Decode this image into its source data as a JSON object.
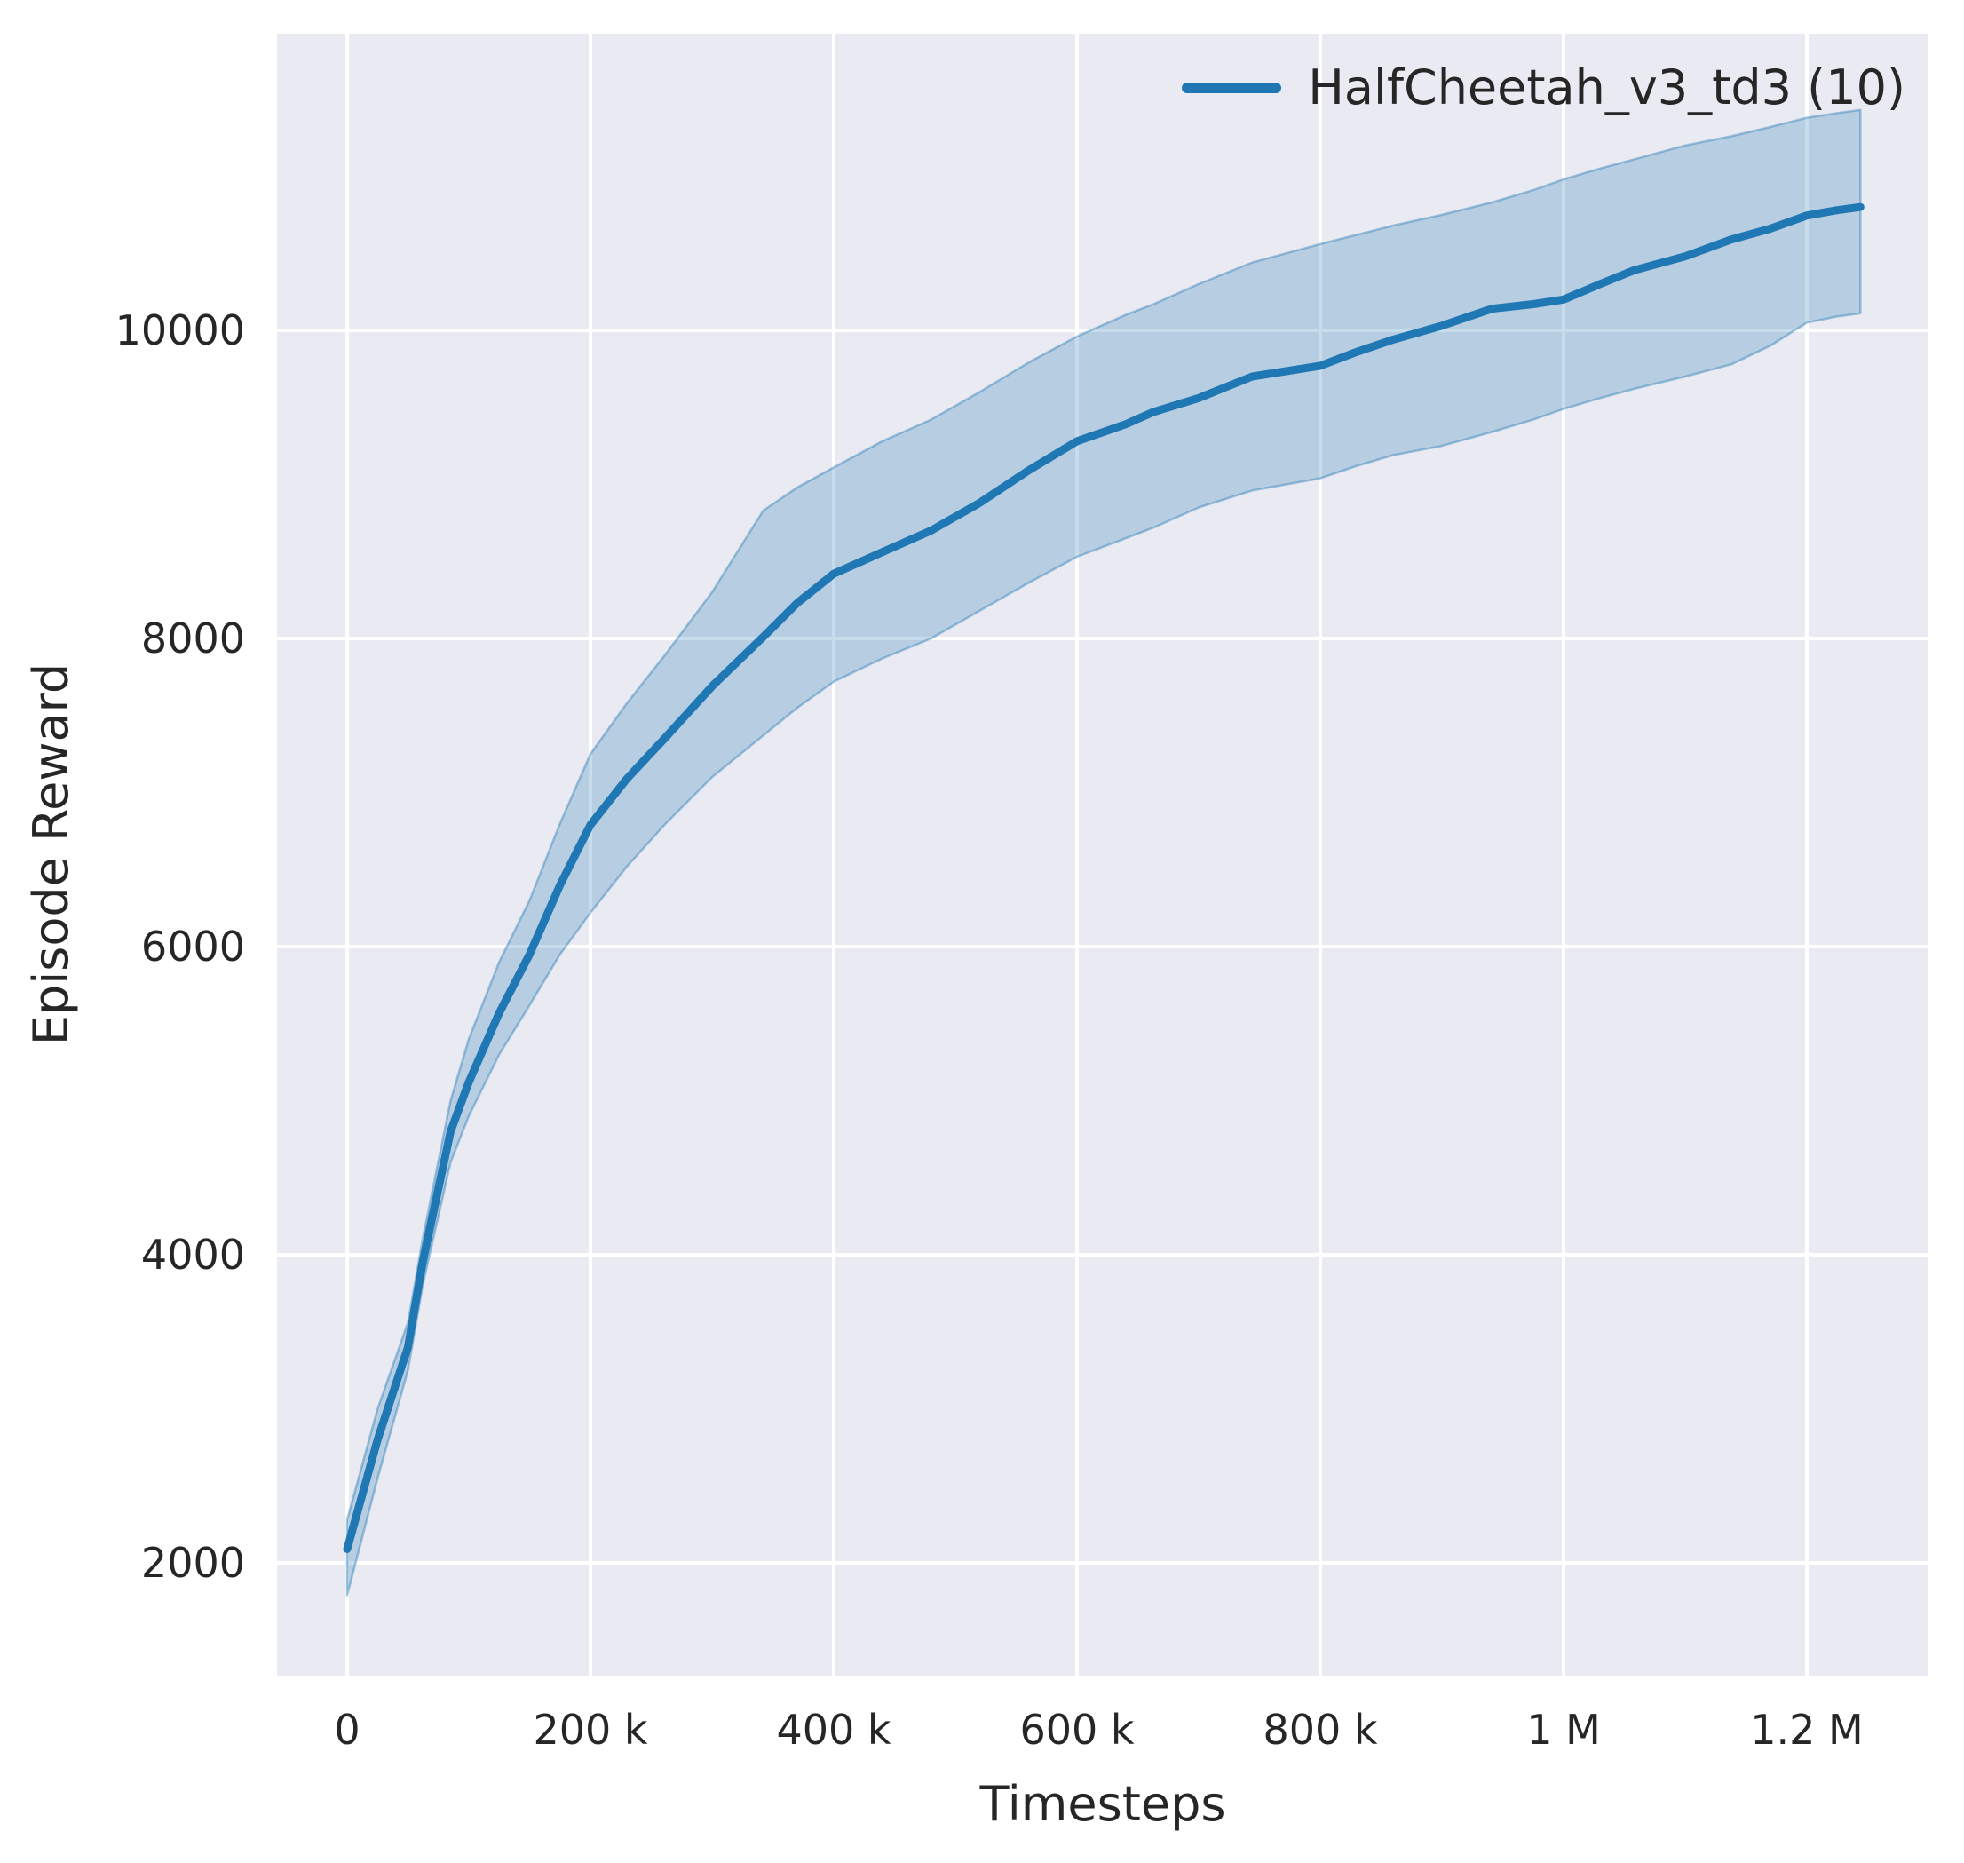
{
  "chart_data": {
    "type": "line",
    "title": "",
    "xlabel": "Timesteps",
    "ylabel": "Episode Reward",
    "grid": true,
    "legend": {
      "position": "upper right",
      "entries": [
        {
          "label": "HalfCheetah_v3_td3 (10)",
          "color": "#1f77b4"
        }
      ]
    },
    "x_ticks": [
      {
        "value": 0,
        "label": "0"
      },
      {
        "value": 200000,
        "label": "200 k"
      },
      {
        "value": 400000,
        "label": "400 k"
      },
      {
        "value": 600000,
        "label": "600 k"
      },
      {
        "value": 800000,
        "label": "800 k"
      },
      {
        "value": 1000000,
        "label": "1 M"
      },
      {
        "value": 1200000,
        "label": "1.2 M"
      }
    ],
    "y_ticks": [
      {
        "value": 2000,
        "label": "2000"
      },
      {
        "value": 4000,
        "label": "4000"
      },
      {
        "value": 6000,
        "label": "6000"
      },
      {
        "value": 8000,
        "label": "8000"
      },
      {
        "value": 10000,
        "label": "10000"
      }
    ],
    "xlim": [
      -57700,
      1300000
    ],
    "ylim": [
      1268,
      11925
    ],
    "series": [
      {
        "name": "HalfCheetah_v3_td3 (10)",
        "color": "#1f77b4",
        "x": [
          0,
          25000,
          50000,
          62000,
          85000,
          100000,
          125000,
          150000,
          175000,
          200000,
          230000,
          262000,
          300000,
          342000,
          370000,
          400000,
          440000,
          480000,
          520000,
          560000,
          600000,
          640000,
          663000,
          700000,
          744000,
          800000,
          830000,
          860000,
          900000,
          941000,
          975000,
          1000000,
          1030000,
          1058000,
          1100000,
          1138000,
          1170000,
          1200000,
          1225000,
          1244000
        ],
        "mean": [
          2090,
          2800,
          3400,
          3950,
          4800,
          5120,
          5570,
          5950,
          6400,
          6790,
          7090,
          7360,
          7690,
          8010,
          8230,
          8420,
          8560,
          8700,
          8880,
          9090,
          9280,
          9390,
          9470,
          9560,
          9700,
          9770,
          9860,
          9940,
          10030,
          10140,
          10170,
          10200,
          10300,
          10390,
          10480,
          10590,
          10660,
          10745,
          10780,
          10800
        ],
        "lower": [
          1790,
          2550,
          3250,
          3800,
          4600,
          4900,
          5300,
          5620,
          5950,
          6220,
          6520,
          6800,
          7100,
          7370,
          7550,
          7720,
          7870,
          8000,
          8180,
          8360,
          8530,
          8650,
          8720,
          8850,
          8960,
          9040,
          9120,
          9190,
          9250,
          9340,
          9420,
          9490,
          9560,
          9620,
          9700,
          9780,
          9900,
          10050,
          10090,
          10110
        ],
        "upper": [
          2280,
          3000,
          3560,
          4100,
          5000,
          5400,
          5900,
          6300,
          6800,
          7250,
          7580,
          7900,
          8300,
          8830,
          8980,
          9110,
          9280,
          9420,
          9600,
          9790,
          9960,
          10100,
          10170,
          10300,
          10440,
          10560,
          10620,
          10680,
          10750,
          10830,
          10910,
          10980,
          11050,
          11110,
          11200,
          11260,
          11320,
          11380,
          11410,
          11430
        ]
      }
    ],
    "colors": {
      "figure_bg": "#ffffff",
      "axes_bg": "#eaeaf2",
      "grid": "#ffffff",
      "line": "#1f77b4",
      "band_fill": "rgba(31,119,180,0.25)",
      "band_edge": "rgba(31,119,180,0.40)",
      "text": "#262626"
    }
  }
}
